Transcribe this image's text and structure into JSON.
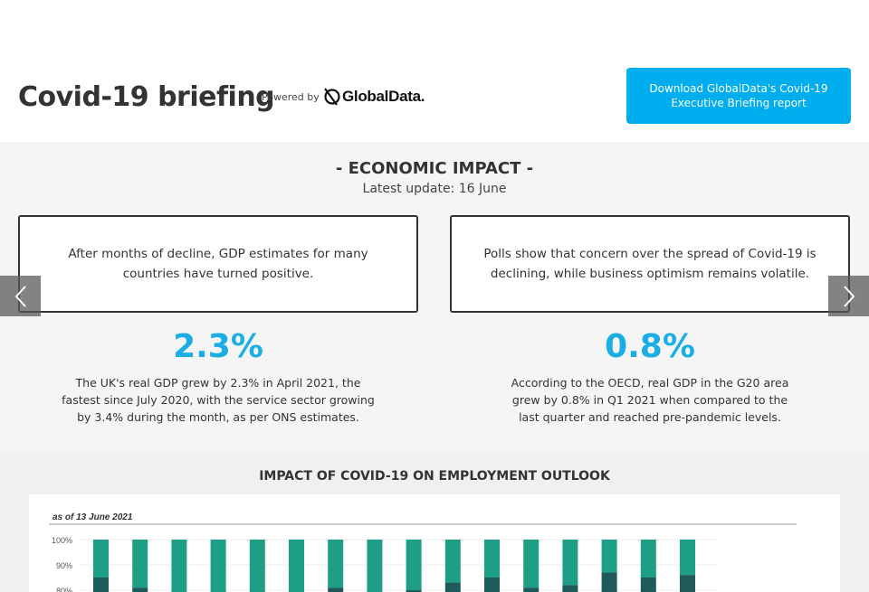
{
  "header": {
    "title": "Covid-19 briefing",
    "powered_by": "Powered by",
    "logo_text": "GlobalData.",
    "download_label": "Download GlobalData's Covid-19 Executive Briefing report"
  },
  "impact": {
    "heading": "- ECONOMIC IMPACT -",
    "update": "Latest update: 16 June",
    "cards": [
      {
        "text": "After months of decline, GDP estimates for many countries have turned positive.",
        "stat": "2.3%",
        "description": "The UK's real GDP grew by 2.3% in April 2021, the fastest since July 2020, with the service sector growing by 3.4% during the month, as per ONS estimates."
      },
      {
        "text": "Polls show that concern over the spread of Covid-19 is declining, while business optimism remains volatile.",
        "stat": "0.8%",
        "description": "According to the OECD, real GDP in the G20 area grew by 0.8% in Q1 2021 when compared to the last quarter and reached pre-pandemic levels."
      }
    ]
  },
  "employment": {
    "title": "IMPACT OF COVID-19 ON EMPLOYMENT OUTLOOK"
  },
  "colors": {
    "accent": "#00aeef",
    "stat": "#1aaee5",
    "bar_light": "#1e9e84",
    "bar_dark": "#1f5a5a"
  },
  "chart_data": {
    "type": "bar",
    "subtitle": "as of 13 June 2021",
    "ytick_labels": [
      "100%",
      "90%",
      "80%"
    ],
    "ylim": [
      0,
      100
    ],
    "stacked": true,
    "series": [
      {
        "values": [
          85,
          81,
          78,
          78,
          78,
          78,
          81,
          78,
          80,
          83,
          85,
          81,
          82,
          87,
          85,
          86
        ]
      },
      {
        "values": [
          15,
          19,
          22,
          22,
          22,
          22,
          19,
          22,
          20,
          17,
          15,
          19,
          18,
          13,
          15,
          14
        ]
      }
    ]
  }
}
